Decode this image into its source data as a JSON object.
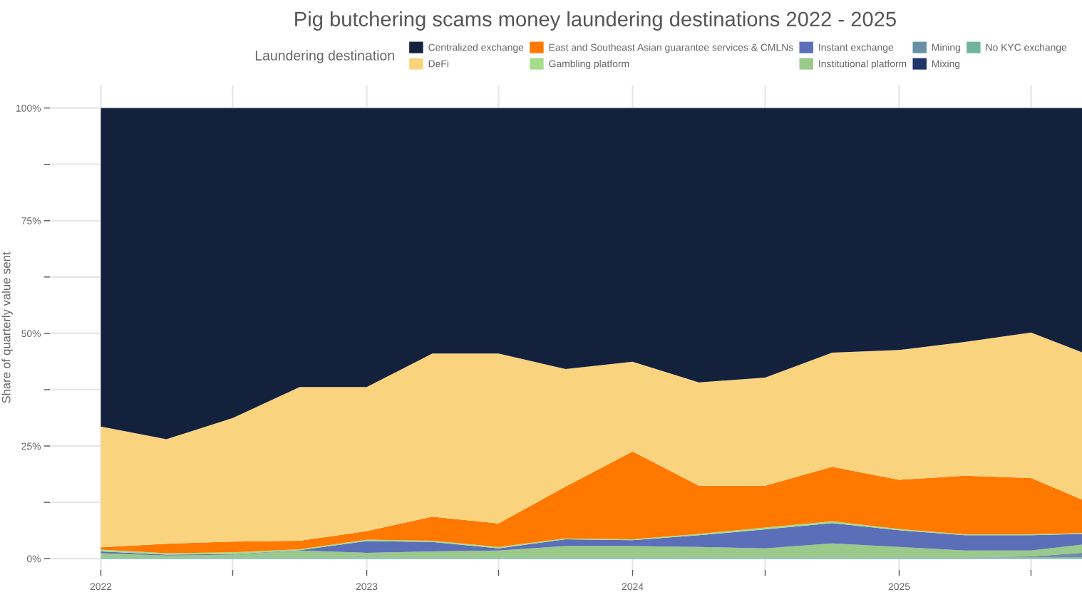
{
  "chart_data": {
    "type": "area",
    "stacked": true,
    "title": "Pig butchering scams money laundering destinations 2022 - 2025",
    "ylabel": "Share of quarterly value sent",
    "legend_title": "Laundering destination",
    "x": [
      "2022-01",
      "2022-04",
      "2022-07",
      "2022-10",
      "2023-01",
      "2023-04",
      "2023-07",
      "2023-10",
      "2024-01",
      "2024-04",
      "2024-07",
      "2024-10",
      "2025-01",
      "2025-04",
      "2025-07",
      "2025-09-09"
    ],
    "series": [
      {
        "name": "No KYC exchange",
        "color": "#6fb5a0",
        "values": [
          0.3,
          0.3,
          0.3,
          0.3,
          0.3,
          0.3,
          0.3,
          0.3,
          0.3,
          0.3,
          0.3,
          0.3,
          0.3,
          0.3,
          0.3,
          0.3
        ]
      },
      {
        "name": "Mixing",
        "color": "#1f3468",
        "values": [
          null,
          null,
          null,
          null,
          null,
          null,
          null,
          null,
          null,
          null,
          null,
          null,
          null,
          null,
          null,
          null
        ]
      },
      {
        "name": "Mining",
        "color": "#6a8fa8",
        "values": [
          0,
          0,
          0,
          0,
          0,
          0,
          0,
          0,
          0,
          0,
          0,
          0,
          0,
          0,
          0.2,
          1.0
        ]
      },
      {
        "name": "Institutional platform",
        "color": "#9bc98a",
        "values": [
          0.9,
          0.4,
          0.6,
          1.5,
          1.0,
          1.3,
          1.5,
          2.5,
          2.5,
          2.3,
          2.0,
          3.1,
          2.3,
          1.5,
          1.3,
          1.8
        ]
      },
      {
        "name": "Instant exchange",
        "color": "#5b6fb8",
        "values": [
          0.4,
          0.2,
          0.1,
          0.1,
          2.6,
          2.1,
          0.5,
          1.5,
          1.3,
          2.6,
          4.2,
          4.5,
          3.7,
          3.4,
          3.4,
          2.4
        ]
      },
      {
        "name": "Gambling platform",
        "color": "#a6dc8c",
        "values": [
          0.4,
          0.3,
          0.4,
          0.2,
          0.3,
          0.3,
          0.3,
          0.2,
          0.2,
          0.3,
          0.4,
          0.4,
          0.3,
          0.2,
          0.2,
          0.2
        ]
      },
      {
        "name": "East and Southeast Asian guarantee services & CMLNs",
        "color": "#ff7800",
        "values": [
          0.5,
          2.1,
          2.4,
          1.9,
          1.9,
          5.3,
          5.2,
          11.5,
          19.5,
          10.7,
          9.3,
          12.1,
          10.9,
          13.0,
          12.5,
          7.4
        ]
      },
      {
        "name": "DeFi",
        "color": "#fad37f",
        "values": [
          26.8,
          23.2,
          27.4,
          34.1,
          32.0,
          36.2,
          37.7,
          26.1,
          19.9,
          22.9,
          24.0,
          25.3,
          28.8,
          29.7,
          32.3,
          32.7
        ]
      },
      {
        "name": "Centralized exchange",
        "color": "#14213d",
        "values": [
          70.7,
          73.5,
          68.8,
          61.9,
          61.9,
          54.5,
          54.5,
          57.9,
          56.3,
          60.9,
          59.8,
          54.3,
          53.7,
          51.9,
          49.8,
          54.2
        ]
      }
    ],
    "xlim": [
      "2021-10-23",
      "2025-09-09"
    ],
    "xticks": [
      {
        "value": "2022-01-01",
        "label": "2022"
      },
      {
        "value": "2022-07-01",
        "label": null
      },
      {
        "value": "2023-01-01",
        "label": "2023"
      },
      {
        "value": "2023-07-01",
        "label": null
      },
      {
        "value": "2024-01-01",
        "label": "2024"
      },
      {
        "value": "2024-07-01",
        "label": null
      },
      {
        "value": "2025-01-01",
        "label": "2025"
      },
      {
        "value": "2025-07-01",
        "label": null
      }
    ],
    "ylim": [
      -2.5,
      105
    ],
    "yticks": [
      {
        "value": 0,
        "label": "0%"
      },
      {
        "value": 12.5,
        "label": null
      },
      {
        "value": 25,
        "label": "25%"
      },
      {
        "value": 37.5,
        "label": null
      },
      {
        "value": 50,
        "label": "50%"
      },
      {
        "value": 62.5,
        "label": null
      },
      {
        "value": 75,
        "label": "75%"
      },
      {
        "value": 87.5,
        "label": null
      },
      {
        "value": 100,
        "label": "100%"
      }
    ],
    "grid": true,
    "legend": "top"
  }
}
